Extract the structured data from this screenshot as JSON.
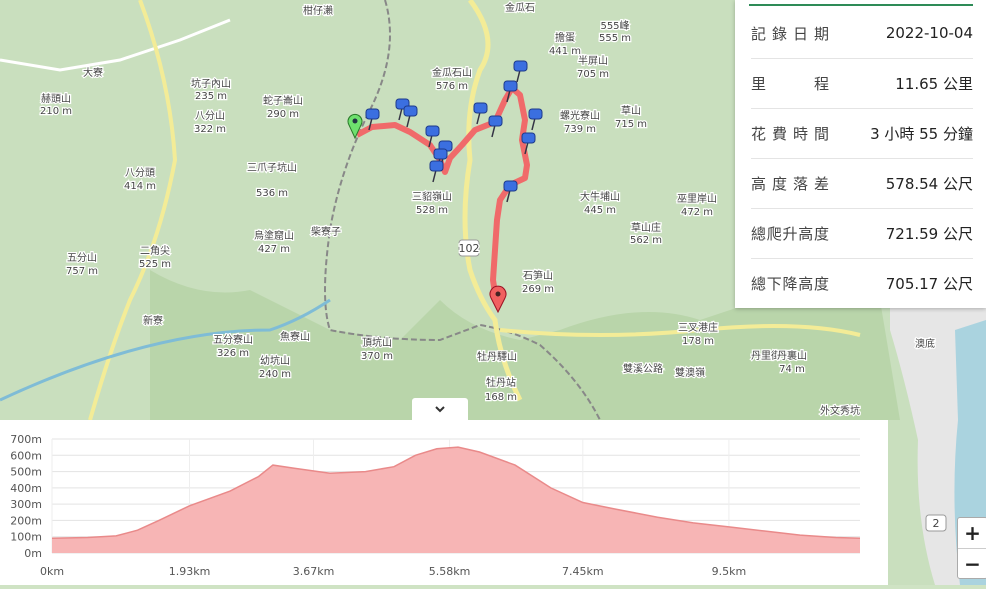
{
  "stats": {
    "rows": [
      {
        "label": "記錄日期",
        "value": "2022-10-04"
      },
      {
        "label": "里程",
        "value": "11.65 公里"
      },
      {
        "label": "花費時間",
        "value": "3 小時 55 分鐘"
      },
      {
        "label": "高度落差",
        "value": "578.54 公尺"
      },
      {
        "label": "總爬升高度",
        "value": "721.59 公尺"
      },
      {
        "label": "總下降高度",
        "value": "705.17 公尺"
      }
    ]
  },
  "map_labels": [
    "柑仔瀨",
    "金瓜石",
    "555峰",
    "555 m",
    "擔蛋",
    "441 m",
    "半屏山",
    "705 m",
    "大寮",
    "坑子內山",
    "235 m",
    "赫頭山",
    "210 m",
    "八分山",
    "322 m",
    "蛇子崙山",
    "290 m",
    "金瓜石山",
    "576 m",
    "螺光寮山",
    "739 m",
    "草山",
    "715 m",
    "八分頭",
    "414 m",
    "三爪子坑山",
    "536 m",
    "三貂嶺山",
    "528 m",
    "大牛埔山",
    "445 m",
    "巫里岸山",
    "472 m",
    "草山庄",
    "562 m",
    "柴寮子",
    "烏塗窟山",
    "427 m",
    "二角尖",
    "525 m",
    "五分山",
    "757 m",
    "石笋山",
    "269 m",
    "新寮",
    "五分寮山",
    "326 m",
    "魚寮山",
    "頂坑山",
    "370 m",
    "幼坑山",
    "240 m",
    "牡丹驛山",
    "牡丹站",
    "168 m",
    "三叉港庄",
    "178 m",
    "丹里街",
    "丹裏山",
    "74 m",
    "澳底",
    "雙溪公路",
    "雙澳嶺",
    "外文秀坑",
    "102",
    "2"
  ],
  "zoom": {
    "in": "+",
    "out": "−"
  },
  "chart_data": {
    "type": "area",
    "color": "#f7b5b5",
    "line_color": "#e98a8a",
    "x": [
      0,
      0.5,
      0.9,
      1.2,
      1.5,
      1.93,
      2.5,
      2.9,
      3.1,
      3.4,
      3.9,
      4.4,
      4.8,
      5.1,
      5.4,
      5.7,
      6.0,
      6.5,
      7.0,
      7.45,
      7.9,
      8.5,
      9.0,
      9.5,
      10.0,
      10.5,
      11.0,
      11.34
    ],
    "values": [
      90,
      95,
      105,
      140,
      200,
      290,
      380,
      470,
      540,
      520,
      490,
      500,
      530,
      600,
      640,
      650,
      620,
      540,
      400,
      310,
      270,
      220,
      185,
      160,
      135,
      110,
      95,
      90
    ],
    "xlim": [
      0,
      11.34
    ],
    "ylim": [
      0,
      700
    ],
    "xticks": [
      {
        "value": 0,
        "label": "0km"
      },
      {
        "value": 1.93,
        "label": "1.93km"
      },
      {
        "value": 3.67,
        "label": "3.67km"
      },
      {
        "value": 5.58,
        "label": "5.58km"
      },
      {
        "value": 7.45,
        "label": "7.45km"
      },
      {
        "value": 9.5,
        "label": "9.5km"
      }
    ],
    "yticks": [
      {
        "value": 0,
        "label": "0m"
      },
      {
        "value": 100,
        "label": "100m"
      },
      {
        "value": 200,
        "label": "200m"
      },
      {
        "value": 300,
        "label": "300m"
      },
      {
        "value": 400,
        "label": "400m"
      },
      {
        "value": 500,
        "label": "500m"
      },
      {
        "value": 600,
        "label": "600m"
      },
      {
        "value": 700,
        "label": "700m"
      }
    ],
    "grid": true
  }
}
